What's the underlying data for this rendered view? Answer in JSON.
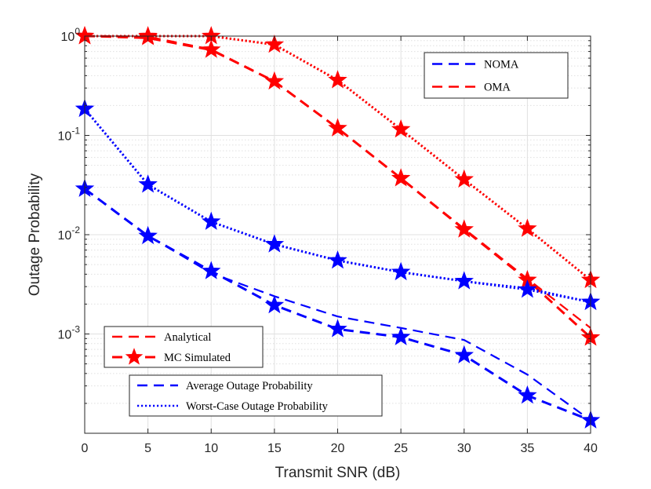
{
  "chart_data": {
    "type": "line",
    "title": "",
    "xlabel": "Transmit SNR (dB)",
    "ylabel": "Outage Probability",
    "yscale": "log",
    "xlim": [
      0,
      40
    ],
    "ylim": [
      0.0001,
      1
    ],
    "grid": true,
    "x": [
      0,
      5,
      10,
      15,
      20,
      25,
      30,
      35,
      40
    ],
    "x_ticks": [
      "0",
      "5",
      "10",
      "15",
      "20",
      "25",
      "30",
      "35",
      "40"
    ],
    "y_ticks": [
      {
        "base": "10",
        "exp": "0",
        "value": 1
      },
      {
        "base": "10",
        "exp": "-1",
        "value": 0.1
      },
      {
        "base": "10",
        "exp": "-2",
        "value": 0.01
      },
      {
        "base": "10",
        "exp": "-3",
        "value": 0.001
      }
    ],
    "colors": {
      "noma": "#0000ff",
      "oma": "#ff0000",
      "axis": "#262626",
      "grid": "#e0e0e0"
    },
    "series": [
      {
        "name": "OMA Worst-Case Outage Probability",
        "scheme": "OMA",
        "metric": "Worst-Case Outage Probability",
        "color": "#ff0000",
        "style": "dotted",
        "analytical": [
          1.0,
          1.0,
          1.0,
          0.82,
          0.36,
          0.115,
          0.036,
          0.0115,
          0.0035
        ],
        "simulated": [
          1.0,
          1.0,
          1.0,
          0.82,
          0.36,
          0.115,
          0.036,
          0.0115,
          0.0035
        ]
      },
      {
        "name": "OMA Average Outage Probability",
        "scheme": "OMA",
        "metric": "Average Outage Probability",
        "color": "#ff0000",
        "style": "dashed",
        "analytical": [
          1.0,
          0.95,
          0.72,
          0.35,
          0.118,
          0.037,
          0.0115,
          0.0036,
          0.00115
        ],
        "simulated": [
          1.0,
          0.98,
          0.73,
          0.35,
          0.118,
          0.037,
          0.0113,
          0.0035,
          0.00092
        ]
      },
      {
        "name": "NOMA Worst-Case Outage Probability",
        "scheme": "NOMA",
        "metric": "Worst-Case Outage Probability",
        "color": "#0000ff",
        "style": "dotted",
        "analytical": [
          0.185,
          0.032,
          0.0135,
          0.008,
          0.0055,
          0.0042,
          0.0034,
          0.0029,
          0.0021
        ],
        "simulated": [
          0.185,
          0.032,
          0.0135,
          0.008,
          0.0055,
          0.0042,
          0.0034,
          0.0028,
          0.0021
        ]
      },
      {
        "name": "NOMA Average Outage Probability",
        "scheme": "NOMA",
        "metric": "Average Outage Probability",
        "color": "#0000ff",
        "style": "dashed",
        "analytical": [
          0.029,
          0.0098,
          0.0041,
          0.0024,
          0.0015,
          0.00115,
          0.00087,
          0.00039,
          0.000135
        ],
        "simulated": [
          0.029,
          0.0097,
          0.0043,
          0.00195,
          0.00112,
          0.00093,
          0.00061,
          0.00024,
          0.000135
        ]
      }
    ],
    "legends": [
      {
        "position": "top-right",
        "entries": [
          {
            "label": "NOMA",
            "color": "#0000ff",
            "style": "dashed",
            "marker": false
          },
          {
            "label": "OMA",
            "color": "#ff0000",
            "style": "dashed",
            "marker": false
          }
        ]
      },
      {
        "position": "bottom-left",
        "entries": [
          {
            "label": "Analytical",
            "color": "#ff0000",
            "style": "dashed",
            "marker": false
          },
          {
            "label": "MC Simulated",
            "color": "#ff0000",
            "style": "dashed",
            "marker": true
          }
        ]
      },
      {
        "position": "bottom-center",
        "entries": [
          {
            "label": "Average Outage Probability",
            "color": "#0000ff",
            "style": "dashed",
            "marker": false
          },
          {
            "label": "Worst-Case Outage Probability",
            "color": "#0000ff",
            "style": "dotted",
            "marker": false
          }
        ]
      }
    ]
  }
}
